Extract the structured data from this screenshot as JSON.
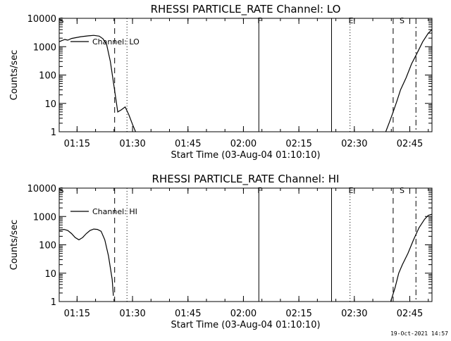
{
  "chart_data": [
    {
      "type": "line",
      "title": "RHESSI PARTICLE_RATE Channel: LO",
      "xlabel": "Start Time (03-Aug-04 01:10:10)",
      "ylabel": "Counts/sec",
      "yscale": "log",
      "xlim": [
        "01:10:10",
        "02:51:00"
      ],
      "ylim": [
        1,
        10000
      ],
      "x_ticks": [
        "01:15",
        "01:30",
        "01:45",
        "02:00",
        "02:15",
        "02:30",
        "02:45"
      ],
      "y_ticks": [
        "1",
        "10",
        "100",
        "1000",
        "10000"
      ],
      "legend": "Channel: LO",
      "legend_position": "top-left",
      "grid": false,
      "series": [
        {
          "name": "Channel: LO",
          "segments": [
            [
              [
                "01:10:10",
                1500
              ],
              [
                "01:11:40",
                1800
              ],
              [
                "01:12:30",
                1700
              ],
              [
                "01:13:30",
                1950
              ],
              [
                "01:16:00",
                2250
              ],
              [
                "01:18:00",
                2400
              ],
              [
                "01:19:30",
                2500
              ],
              [
                "01:21:00",
                2350
              ],
              [
                "01:22:00",
                1900
              ],
              [
                "01:23:00",
                1200
              ],
              [
                "01:24:00",
                300
              ],
              [
                "01:25:00",
                40
              ],
              [
                "01:26:00",
                5
              ],
              [
                "01:27:00",
                6
              ],
              [
                "01:28:00",
                7.5
              ],
              [
                "01:29:00",
                4
              ],
              [
                "01:30:00",
                1.8
              ],
              [
                "01:30:50",
                1
              ]
            ],
            [
              [
                "02:38:30",
                1
              ],
              [
                "02:39:30",
                2.2
              ],
              [
                "02:40:30",
                5
              ],
              [
                "02:41:30",
                12
              ],
              [
                "02:42:30",
                30
              ],
              [
                "02:44:00",
                80
              ],
              [
                "02:45:30",
                250
              ],
              [
                "02:47:00",
                600
              ],
              [
                "02:48:30",
                1500
              ],
              [
                "02:50:00",
                3000
              ],
              [
                "02:51:00",
                4000
              ]
            ]
          ]
        }
      ],
      "annotations": [
        {
          "label": "S",
          "time": "01:10:10"
        },
        {
          "label": "F",
          "time": "02:03:50"
        },
        {
          "label": "E",
          "time": "02:28:30"
        },
        {
          "label": "S",
          "time": "02:42:20"
        }
      ],
      "vertical_markers": [
        {
          "style": "dashed",
          "time": "01:25:10"
        },
        {
          "style": "dotted",
          "time": "01:28:30"
        },
        {
          "style": "solid",
          "time": "02:04:10"
        },
        {
          "style": "solid",
          "time": "02:23:50"
        },
        {
          "style": "dotted",
          "time": "02:28:50"
        },
        {
          "style": "dashed",
          "time": "02:40:30"
        },
        {
          "style": "dashdot",
          "time": "02:46:40"
        }
      ]
    },
    {
      "type": "line",
      "title": "RHESSI PARTICLE_RATE Channel: HI",
      "xlabel": "Start Time (03-Aug-04 01:10:10)",
      "ylabel": "Counts/sec",
      "yscale": "log",
      "xlim": [
        "01:10:10",
        "02:51:00"
      ],
      "ylim": [
        1,
        10000
      ],
      "x_ticks": [
        "01:15",
        "01:30",
        "01:45",
        "02:00",
        "02:15",
        "02:30",
        "02:45"
      ],
      "y_ticks": [
        "1",
        "10",
        "100",
        "1000",
        "10000"
      ],
      "legend": "Channel: HI",
      "legend_position": "top-left",
      "grid": false,
      "series": [
        {
          "name": "Channel: HI",
          "segments": [
            [
              [
                "01:10:10",
                330
              ],
              [
                "01:11:30",
                350
              ],
              [
                "01:12:30",
                320
              ],
              [
                "01:13:30",
                250
              ],
              [
                "01:14:30",
                180
              ],
              [
                "01:15:30",
                150
              ],
              [
                "01:16:30",
                180
              ],
              [
                "01:17:30",
                250
              ],
              [
                "01:18:30",
                320
              ],
              [
                "01:19:30",
                360
              ],
              [
                "01:20:30",
                350
              ],
              [
                "01:21:30",
                300
              ],
              [
                "01:22:30",
                150
              ],
              [
                "01:23:30",
                40
              ],
              [
                "01:24:30",
                6
              ],
              [
                "01:24:50",
                1.6
              ]
            ],
            [
              [
                "02:39:50",
                1
              ],
              [
                "02:41:00",
                3
              ],
              [
                "02:42:00",
                10
              ],
              [
                "02:43:00",
                20
              ],
              [
                "02:44:30",
                50
              ],
              [
                "02:46:00",
                150
              ],
              [
                "02:47:30",
                400
              ],
              [
                "02:49:00",
                800
              ],
              [
                "02:50:00",
                1100
              ],
              [
                "02:51:00",
                1200
              ]
            ]
          ]
        }
      ],
      "annotations": [
        {
          "label": "S",
          "time": "01:10:10"
        },
        {
          "label": "F",
          "time": "02:03:50"
        },
        {
          "label": "E",
          "time": "02:28:30"
        },
        {
          "label": "S",
          "time": "02:42:20"
        }
      ],
      "vertical_markers": [
        {
          "style": "dashed",
          "time": "01:25:10"
        },
        {
          "style": "dotted",
          "time": "01:28:30"
        },
        {
          "style": "solid",
          "time": "02:04:10"
        },
        {
          "style": "solid",
          "time": "02:23:50"
        },
        {
          "style": "dotted",
          "time": "02:28:50"
        },
        {
          "style": "dashed",
          "time": "02:40:30"
        },
        {
          "style": "dashdot",
          "time": "02:46:40"
        }
      ]
    }
  ],
  "footer": {
    "timestamp": "19-Oct-2021 14:57"
  }
}
